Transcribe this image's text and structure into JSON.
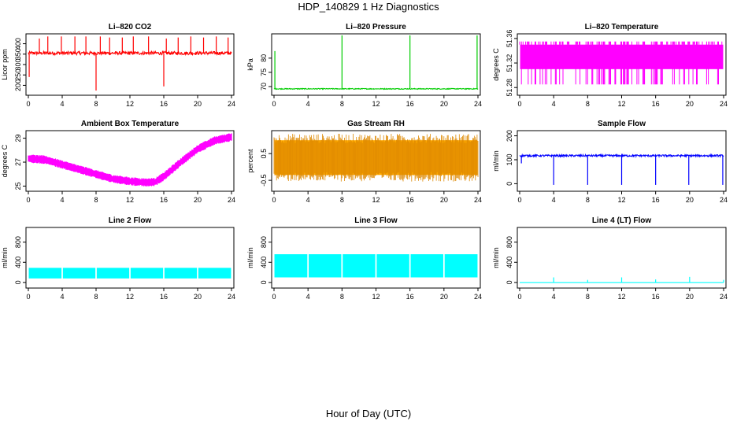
{
  "title": "HDP_140829  1 Hz Diagnostics",
  "xlabel": "Hour of Day (UTC)",
  "chart_data": [
    {
      "type": "line",
      "title": "Li–820 CO2",
      "ylabel": "Licor ppm",
      "color": "#ff0000",
      "xlim": [
        0,
        24
      ],
      "ylim": [
        160,
        440
      ],
      "xticks": [
        0,
        4,
        8,
        12,
        16,
        20,
        24
      ],
      "yticks": [
        200,
        250,
        300,
        350,
        400
      ],
      "baseline": 355,
      "noise": 8,
      "spikes": [
        {
          "x": 0.1,
          "y": 240
        },
        {
          "x": 1.3,
          "y": 425
        },
        {
          "x": 2.3,
          "y": 435
        },
        {
          "x": 3.9,
          "y": 435
        },
        {
          "x": 5.5,
          "y": 435
        },
        {
          "x": 6.8,
          "y": 435
        },
        {
          "x": 8.0,
          "y": 175
        },
        {
          "x": 8.5,
          "y": 435
        },
        {
          "x": 9.6,
          "y": 430
        },
        {
          "x": 11.1,
          "y": 430
        },
        {
          "x": 12.4,
          "y": 435
        },
        {
          "x": 14.2,
          "y": 435
        },
        {
          "x": 16.0,
          "y": 195
        },
        {
          "x": 16.3,
          "y": 425
        },
        {
          "x": 17.7,
          "y": 430
        },
        {
          "x": 19.2,
          "y": 435
        },
        {
          "x": 20.7,
          "y": 430
        },
        {
          "x": 22.2,
          "y": 435
        },
        {
          "x": 23.6,
          "y": 430
        }
      ]
    },
    {
      "type": "line",
      "title": "Li–820 Pressure",
      "ylabel": "kPa",
      "color": "#00cc00",
      "xlim": [
        0,
        24
      ],
      "ylim": [
        67.5,
        88
      ],
      "xticks": [
        0,
        4,
        8,
        12,
        16,
        20,
        24
      ],
      "yticks": [
        70,
        75,
        80
      ],
      "baseline": 69.2,
      "noise": 0.15,
      "spikes": [
        {
          "x": 0.1,
          "y": 82.5
        },
        {
          "x": 8.0,
          "y": 88
        },
        {
          "x": 16.0,
          "y": 88
        },
        {
          "x": 23.9,
          "y": 88
        }
      ]
    },
    {
      "type": "area",
      "title": "Li–820 Temperature",
      "ylabel": "degrees C",
      "color": "#ff00ff",
      "xlim": [
        0,
        24
      ],
      "ylim": [
        51.27,
        51.365
      ],
      "xticks": [
        0,
        4,
        8,
        12,
        16,
        20,
        24
      ],
      "yticks": [
        51.28,
        51.32,
        51.36
      ],
      "lower": 51.31,
      "upper": 51.35
    },
    {
      "type": "line",
      "title": "Ambient Box Temperature",
      "ylabel": "degrees C",
      "color": "#ff00ff",
      "xlim": [
        0,
        24
      ],
      "ylim": [
        24.7,
        29.5
      ],
      "xticks": [
        0,
        4,
        8,
        12,
        16,
        20,
        24
      ],
      "yticks": [
        25,
        27,
        29
      ],
      "x": [
        0,
        2,
        4,
        6,
        8,
        10,
        12,
        14,
        15,
        16,
        18,
        20,
        22,
        24
      ],
      "y": [
        27.3,
        27.2,
        26.8,
        26.4,
        26.0,
        25.6,
        25.4,
        25.3,
        25.35,
        25.8,
        27.0,
        28.1,
        28.8,
        29.1
      ],
      "noise": 0.35
    },
    {
      "type": "area",
      "title": "Gas Stream RH",
      "ylabel": "percent",
      "color": "#ffaa00",
      "xlim": [
        0,
        24
      ],
      "ylim": [
        -0.85,
        1.3
      ],
      "xticks": [
        0,
        4,
        8,
        12,
        16,
        20,
        24
      ],
      "yticks": [
        -0.5,
        0.5
      ],
      "lower": -0.3,
      "upper": 1.0
    },
    {
      "type": "line",
      "title": "Sample Flow",
      "ylabel": "ml/min",
      "color": "#0000ff",
      "xlim": [
        0,
        24
      ],
      "ylim": [
        -25,
        215
      ],
      "xticks": [
        0,
        4,
        8,
        12,
        16,
        20,
        24
      ],
      "yticks": [
        0,
        100,
        200
      ],
      "baseline": 117,
      "noise": 4,
      "spikes": [
        {
          "x": 0.2,
          "y": 85
        },
        {
          "x": 4.0,
          "y": -5
        },
        {
          "x": 8.0,
          "y": -5
        },
        {
          "x": 12.0,
          "y": -5
        },
        {
          "x": 16.0,
          "y": -5
        },
        {
          "x": 19.9,
          "y": -5
        },
        {
          "x": 23.9,
          "y": -5
        }
      ]
    },
    {
      "type": "area",
      "title": "Line 2 Flow",
      "ylabel": "ml/min",
      "color": "#00ffff",
      "xlim": [
        0,
        24
      ],
      "ylim": [
        -80,
        1060
      ],
      "xticks": [
        0,
        4,
        8,
        12,
        16,
        20,
        24
      ],
      "yticks": [
        0,
        400,
        800
      ],
      "lower": 80,
      "upper": 290,
      "gaps": [
        4,
        8,
        12,
        16,
        20
      ]
    },
    {
      "type": "area",
      "title": "Line 3 Flow",
      "ylabel": "ml/min",
      "color": "#00ffff",
      "xlim": [
        0,
        24
      ],
      "ylim": [
        -80,
        1060
      ],
      "xticks": [
        0,
        4,
        8,
        12,
        16,
        20,
        24
      ],
      "yticks": [
        0,
        400,
        800
      ],
      "lower": 100,
      "upper": 560,
      "gaps": [
        4,
        8,
        12,
        16,
        20
      ]
    },
    {
      "type": "line",
      "title": "Line 4 (LT) Flow",
      "ylabel": "ml/min",
      "color": "#00ffff",
      "xlim": [
        0,
        24
      ],
      "ylim": [
        -80,
        1060
      ],
      "xticks": [
        0,
        4,
        8,
        12,
        16,
        20,
        24
      ],
      "yticks": [
        0,
        400,
        800
      ],
      "baseline": 0,
      "noise": 0,
      "spikes": [
        {
          "x": 4.0,
          "y": 100
        },
        {
          "x": 8.0,
          "y": 50
        },
        {
          "x": 12.0,
          "y": 100
        },
        {
          "x": 16.0,
          "y": 60
        },
        {
          "x": 20.0,
          "y": 110
        },
        {
          "x": 24.0,
          "y": 50
        }
      ]
    }
  ]
}
